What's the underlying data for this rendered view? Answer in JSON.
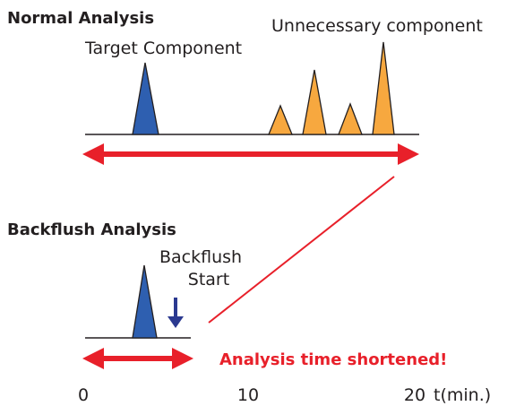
{
  "normal": {
    "title": "Normal Analysis",
    "target_label": "Target Component",
    "unnecessary_label": "Unnecessary component"
  },
  "backflush": {
    "title": "Backflush Analysis",
    "start_label": [
      "Backflush",
      "Start"
    ],
    "result": "Analysis time shortened!"
  },
  "axis": {
    "ticks": [
      "0",
      "10",
      "20"
    ],
    "unit": "t(min.)"
  }
}
